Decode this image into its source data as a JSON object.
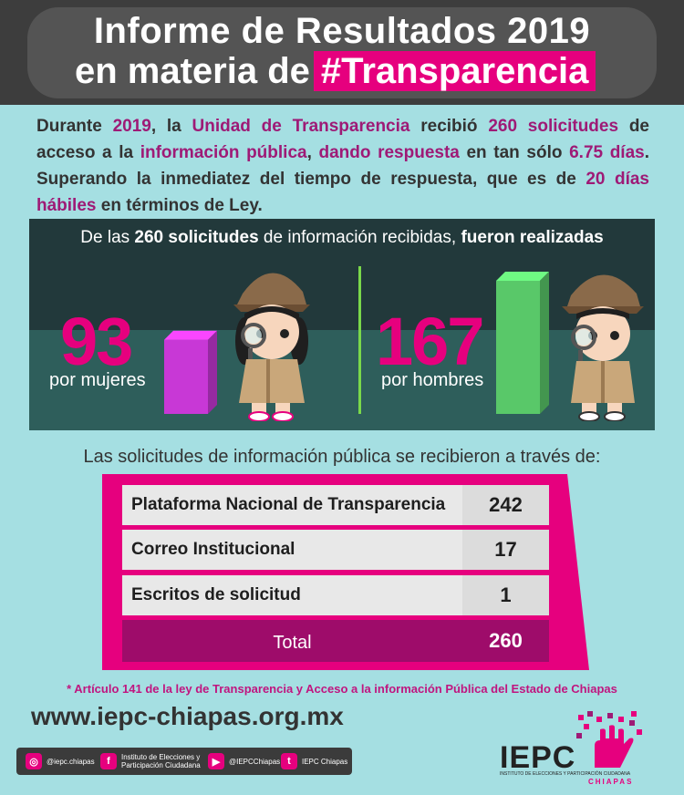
{
  "header": {
    "title_line1": "Informe de Resultados 2019",
    "title_line2_prefix": "en materia de",
    "title_line2_highlight": "#Transparencia"
  },
  "intro": {
    "t1": "Durante ",
    "year": "2019",
    "t2": ", la ",
    "unit": "Unidad de Transparencia",
    "t3": " recibió ",
    "requests": "260 solicitudes",
    "t4": " de acceso a la ",
    "info": "información pública",
    "t5": ", ",
    "answer": "dando respuesta",
    "t6": " en tan sólo ",
    "days": "6.75 días",
    "t7": ". Superando la inmediatez del tiempo de respuesta, que es de ",
    "legal_days": "20 días hábiles",
    "t8": " en términos de Ley."
  },
  "panel": {
    "title_prefix": "De las ",
    "title_bold1": "260 solicitudes",
    "title_mid": " de información recibidas, ",
    "title_bold2": "fueron realizadas",
    "women": {
      "value": "93",
      "label": "por mujeres"
    },
    "men": {
      "value": "167",
      "label": "por hombres"
    }
  },
  "chart_data": {
    "type": "bar",
    "categories": [
      "por mujeres",
      "por hombres"
    ],
    "values": [
      93,
      167
    ],
    "colors": [
      "#c838d6",
      "#59c869"
    ]
  },
  "sources": {
    "title": "Las solicitudes de información pública se recibieron a través de:",
    "rows": [
      {
        "label": "Plataforma Nacional de Transparencia",
        "value": "242"
      },
      {
        "label": "Correo Institucional",
        "value": "17"
      },
      {
        "label": "Escritos de solicitud",
        "value": "1"
      }
    ],
    "total_label": "Total",
    "total_value": "260"
  },
  "footnote": "* Artículo 141 de la ley de Transparencia y Acceso a la información Pública del Estado de Chiapas",
  "url": "www.iepc-chiapas.org.mx",
  "social": {
    "instagram": "@iepc.chiapas",
    "facebook_line1": "Instituto de Elecciones y",
    "facebook_line2": "Participación Ciudadana",
    "youtube": "@IEPCChiapas",
    "twitter": "IEPC Chiapas"
  },
  "logo": {
    "name": "IEPC",
    "sub": "INSTITUTO DE ELECCIONES Y PARTICIPACIÓN CIUDADANA",
    "state": "CHIAPAS"
  },
  "colors": {
    "magenta": "#e6007e",
    "purple": "#9e1a76",
    "bg": "#a5dfe2",
    "dark": "#22393b"
  }
}
